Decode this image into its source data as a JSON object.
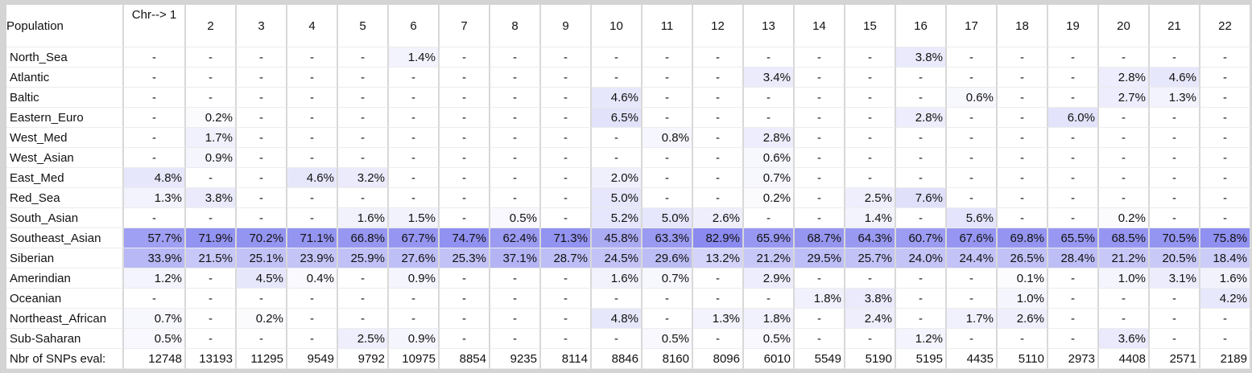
{
  "table": {
    "header_label": "Population",
    "first_chr_label": "Chr--> 1",
    "chromosomes": [
      "2",
      "3",
      "4",
      "5",
      "6",
      "7",
      "8",
      "9",
      "10",
      "11",
      "12",
      "13",
      "14",
      "15",
      "16",
      "17",
      "18",
      "19",
      "20",
      "21",
      "22"
    ],
    "rows": [
      {
        "label": "North_Sea",
        "values": [
          "-",
          "-",
          "-",
          "-",
          "-",
          "1.4%",
          "-",
          "-",
          "-",
          "-",
          "-",
          "-",
          "-",
          "-",
          "-",
          "3.8%",
          "-",
          "-",
          "-",
          "-",
          "-",
          "-"
        ]
      },
      {
        "label": "Atlantic",
        "values": [
          "-",
          "-",
          "-",
          "-",
          "-",
          "-",
          "-",
          "-",
          "-",
          "-",
          "-",
          "-",
          "3.4%",
          "-",
          "-",
          "-",
          "-",
          "-",
          "-",
          "2.8%",
          "4.6%",
          "-"
        ]
      },
      {
        "label": "Baltic",
        "values": [
          "-",
          "-",
          "-",
          "-",
          "-",
          "-",
          "-",
          "-",
          "-",
          "4.6%",
          "-",
          "-",
          "-",
          "-",
          "-",
          "-",
          "0.6%",
          "-",
          "-",
          "2.7%",
          "1.3%",
          "-"
        ]
      },
      {
        "label": "Eastern_Euro",
        "values": [
          "-",
          "0.2%",
          "-",
          "-",
          "-",
          "-",
          "-",
          "-",
          "-",
          "6.5%",
          "-",
          "-",
          "-",
          "-",
          "-",
          "2.8%",
          "-",
          "-",
          "6.0%",
          "-",
          "-",
          "-"
        ]
      },
      {
        "label": "West_Med",
        "values": [
          "-",
          "1.7%",
          "-",
          "-",
          "-",
          "-",
          "-",
          "-",
          "-",
          "-",
          "0.8%",
          "-",
          "2.8%",
          "-",
          "-",
          "-",
          "-",
          "-",
          "-",
          "-",
          "-",
          "-"
        ]
      },
      {
        "label": "West_Asian",
        "values": [
          "-",
          "0.9%",
          "-",
          "-",
          "-",
          "-",
          "-",
          "-",
          "-",
          "-",
          "-",
          "-",
          "0.6%",
          "-",
          "-",
          "-",
          "-",
          "-",
          "-",
          "-",
          "-",
          "-"
        ]
      },
      {
        "label": "East_Med",
        "values": [
          "4.8%",
          "-",
          "-",
          "4.6%",
          "3.2%",
          "-",
          "-",
          "-",
          "-",
          "2.0%",
          "-",
          "-",
          "0.7%",
          "-",
          "-",
          "-",
          "-",
          "-",
          "-",
          "-",
          "-",
          "-"
        ]
      },
      {
        "label": "Red_Sea",
        "values": [
          "1.3%",
          "3.8%",
          "-",
          "-",
          "-",
          "-",
          "-",
          "-",
          "-",
          "5.0%",
          "-",
          "-",
          "0.2%",
          "-",
          "2.5%",
          "7.6%",
          "-",
          "-",
          "-",
          "-",
          "-",
          "-"
        ]
      },
      {
        "label": "South_Asian",
        "values": [
          "-",
          "-",
          "-",
          "-",
          "1.6%",
          "1.5%",
          "-",
          "0.5%",
          "-",
          "5.2%",
          "5.0%",
          "2.6%",
          "-",
          "-",
          "1.4%",
          "-",
          "5.6%",
          "-",
          "-",
          "0.2%",
          "-",
          "-"
        ]
      },
      {
        "label": "Southeast_Asian",
        "values": [
          "57.7%",
          "71.9%",
          "70.2%",
          "71.1%",
          "66.8%",
          "67.7%",
          "74.7%",
          "62.4%",
          "71.3%",
          "45.8%",
          "63.3%",
          "82.9%",
          "65.9%",
          "68.7%",
          "64.3%",
          "60.7%",
          "67.6%",
          "69.8%",
          "65.5%",
          "68.5%",
          "70.5%",
          "75.8%"
        ]
      },
      {
        "label": "Siberian",
        "values": [
          "33.9%",
          "21.5%",
          "25.1%",
          "23.9%",
          "25.9%",
          "27.6%",
          "25.3%",
          "37.1%",
          "28.7%",
          "24.5%",
          "29.6%",
          "13.2%",
          "21.2%",
          "29.5%",
          "25.7%",
          "24.0%",
          "24.4%",
          "26.5%",
          "28.4%",
          "21.2%",
          "20.5%",
          "18.4%"
        ]
      },
      {
        "label": "Amerindian",
        "values": [
          "1.2%",
          "-",
          "4.5%",
          "0.4%",
          "-",
          "0.9%",
          "-",
          "-",
          "-",
          "1.6%",
          "0.7%",
          "-",
          "2.9%",
          "-",
          "-",
          "-",
          "-",
          "0.1%",
          "-",
          "1.0%",
          "3.1%",
          "1.6%"
        ]
      },
      {
        "label": "Oceanian",
        "values": [
          "-",
          "-",
          "-",
          "-",
          "-",
          "-",
          "-",
          "-",
          "-",
          "-",
          "-",
          "-",
          "-",
          "1.8%",
          "3.8%",
          "-",
          "-",
          "1.0%",
          "-",
          "-",
          "-",
          "4.2%"
        ]
      },
      {
        "label": "Northeast_African",
        "values": [
          "0.7%",
          "-",
          "0.2%",
          "-",
          "-",
          "-",
          "-",
          "-",
          "-",
          "4.8%",
          "-",
          "1.3%",
          "1.8%",
          "-",
          "2.4%",
          "-",
          "1.7%",
          "2.6%",
          "-",
          "-",
          "-",
          "-"
        ]
      },
      {
        "label": "Sub-Saharan",
        "values": [
          "0.5%",
          "-",
          "-",
          "-",
          "2.5%",
          "0.9%",
          "-",
          "-",
          "-",
          "-",
          "0.5%",
          "-",
          "0.5%",
          "-",
          "-",
          "1.2%",
          "-",
          "-",
          "-",
          "3.6%",
          "-",
          "-"
        ]
      }
    ],
    "footer_label": "Nbr of SNPs eval:",
    "footer_values": [
      "12748",
      "13193",
      "11295",
      "9549",
      "9792",
      "10975",
      "8854",
      "9235",
      "8114",
      "8846",
      "8160",
      "8096",
      "6010",
      "5549",
      "5190",
      "5195",
      "4435",
      "5110",
      "2973",
      "4408",
      "2571",
      "2189"
    ]
  },
  "colors": {
    "scale_max": "#8a8af0",
    "scale_min": "#ffffff",
    "gridline": "#d8d8d8",
    "background": "#d4d4d4"
  }
}
